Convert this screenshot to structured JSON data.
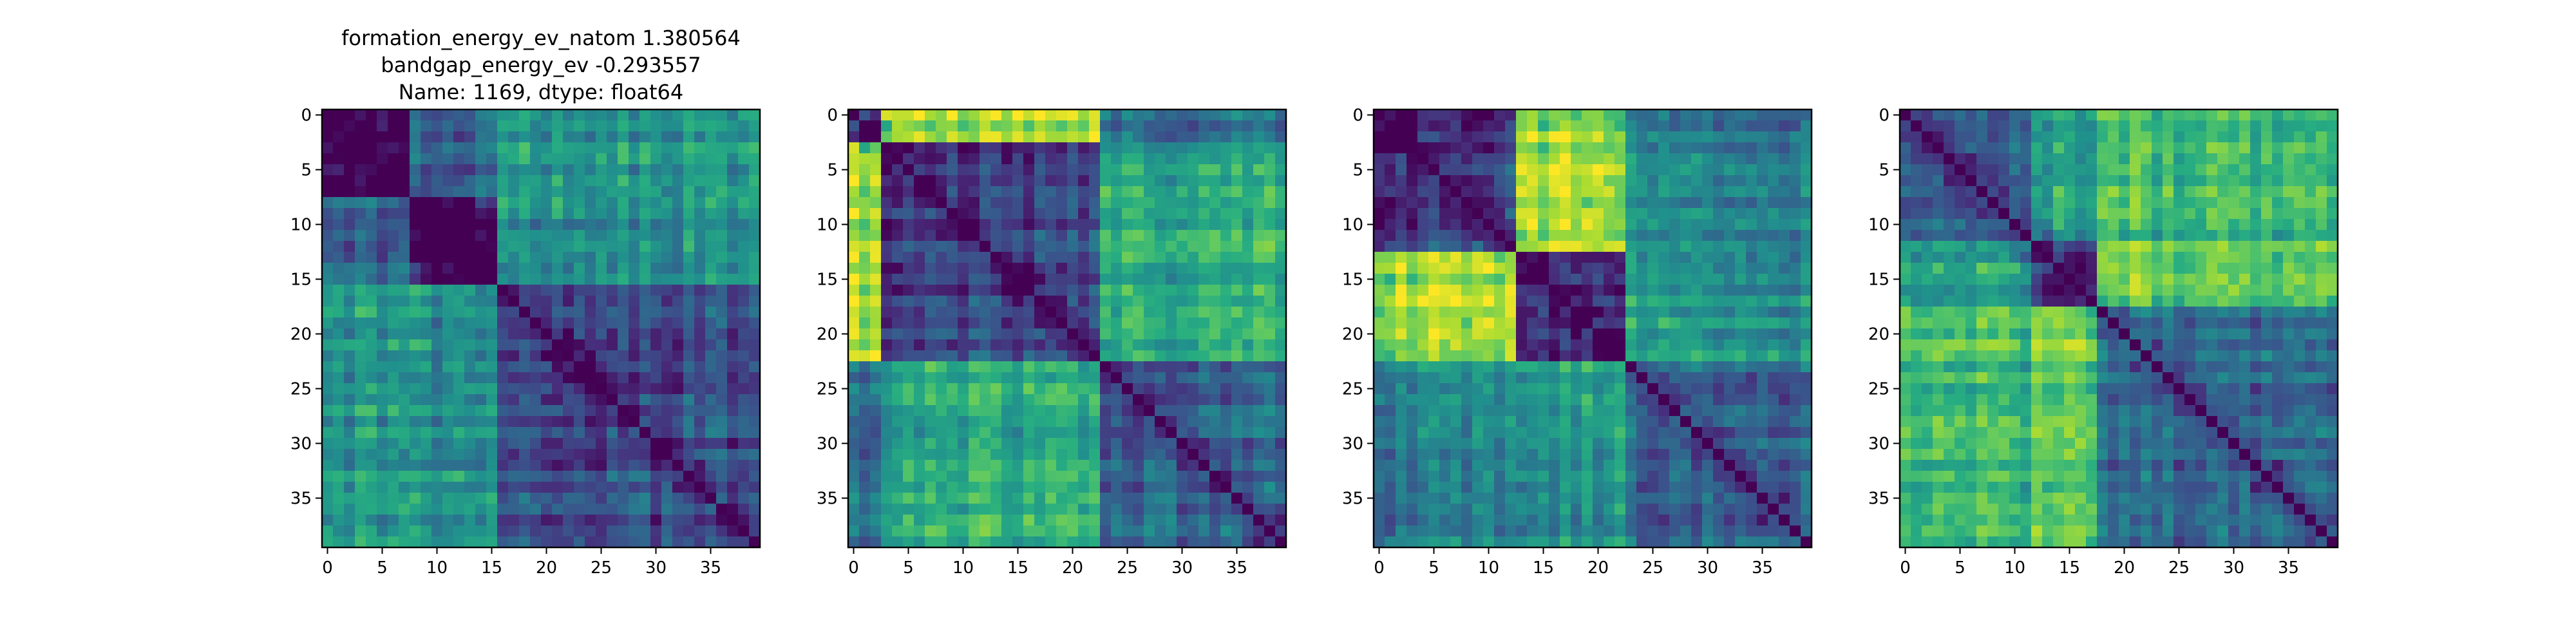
{
  "chart_data": [
    {
      "type": "heatmap",
      "title_lines": [
        "formation_energy_ev_natom    1.380564",
        "bandgap_energy_ev          -0.293557",
        "Name: 1169, dtype: float64"
      ],
      "size": 40,
      "xticks": [
        0,
        5,
        10,
        15,
        20,
        25,
        30,
        35
      ],
      "yticks": [
        0,
        5,
        10,
        15,
        20,
        25,
        30,
        35
      ],
      "colormap": "viridis",
      "diagonal_value": 0,
      "blocks": [
        0,
        8,
        16,
        40
      ],
      "block_levels": [
        [
          0.0,
          0.35,
          0.55
        ],
        [
          0.35,
          0.0,
          0.5
        ],
        [
          0.55,
          0.5,
          0.25
        ]
      ]
    },
    {
      "type": "heatmap",
      "title_lines": [],
      "size": 40,
      "xticks": [
        0,
        5,
        10,
        15,
        20,
        25,
        30,
        35
      ],
      "yticks": [
        0,
        5,
        10,
        15,
        20,
        25,
        30,
        35
      ],
      "colormap": "viridis",
      "diagonal_value": 0,
      "blocks": [
        0,
        3,
        23,
        40
      ],
      "block_levels": [
        [
          0.2,
          0.85,
          0.35
        ],
        [
          0.85,
          0.2,
          0.6
        ],
        [
          0.35,
          0.6,
          0.3
        ]
      ]
    },
    {
      "type": "heatmap",
      "title_lines": [],
      "size": 40,
      "xticks": [
        0,
        5,
        10,
        15,
        20,
        25,
        30,
        35
      ],
      "yticks": [
        0,
        5,
        10,
        15,
        20,
        25,
        30,
        35
      ],
      "colormap": "viridis",
      "diagonal_value": 0,
      "blocks": [
        0,
        13,
        23,
        40
      ],
      "block_levels": [
        [
          0.2,
          0.85,
          0.45
        ],
        [
          0.85,
          0.2,
          0.55
        ],
        [
          0.45,
          0.55,
          0.35
        ]
      ]
    },
    {
      "type": "heatmap",
      "title_lines": [],
      "size": 40,
      "xticks": [
        0,
        5,
        10,
        15,
        20,
        25,
        30,
        35
      ],
      "yticks": [
        0,
        5,
        10,
        15,
        20,
        25,
        30,
        35
      ],
      "colormap": "viridis",
      "diagonal_value": 0,
      "blocks": [
        0,
        12,
        18,
        40
      ],
      "block_levels": [
        [
          0.25,
          0.55,
          0.65
        ],
        [
          0.55,
          0.2,
          0.75
        ],
        [
          0.65,
          0.75,
          0.35
        ]
      ]
    }
  ]
}
